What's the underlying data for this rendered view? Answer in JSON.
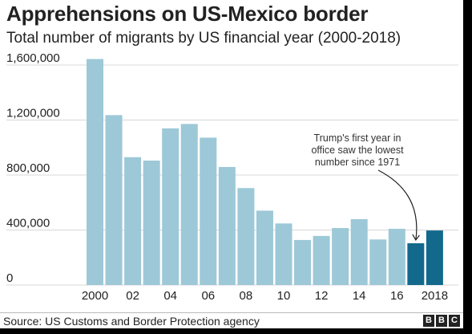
{
  "header": {
    "title": "Apprehensions on US-Mexico border",
    "subtitle": "Total number of migrants by US financial year (2000-2018)"
  },
  "footer": {
    "source": "Source: US Customs and Border Protection agency",
    "logo_letters": [
      "B",
      "B",
      "C"
    ]
  },
  "colors": {
    "bar_default": "#9dc8d7",
    "bar_highlight": "#13698c",
    "gridline": "#d8d8d8",
    "axis_text": "#222222",
    "annotation_text": "#333333"
  },
  "chart_data": {
    "type": "bar",
    "title": "Apprehensions on US-Mexico border",
    "subtitle": "Total number of migrants by US financial year (2000-2018)",
    "categories": [
      "2000",
      "2001",
      "2002",
      "2003",
      "2004",
      "2005",
      "2006",
      "2007",
      "2008",
      "2009",
      "2010",
      "2011",
      "2012",
      "2013",
      "2014",
      "2015",
      "2016",
      "2017",
      "2018"
    ],
    "values": [
      1643679,
      1235718,
      929809,
      905065,
      1139282,
      1171396,
      1071972,
      858638,
      705005,
      540865,
      447731,
      327577,
      356873,
      414397,
      479371,
      331333,
      408870,
      303916,
      396579
    ],
    "highlight": [
      "2017",
      "2018"
    ],
    "x_tick_labels": [
      "2000",
      "",
      "02",
      "",
      "04",
      "",
      "06",
      "",
      "08",
      "",
      "10",
      "",
      "12",
      "",
      "14",
      "",
      "16",
      "",
      "2018"
    ],
    "y_ticks": [
      0,
      400000,
      800000,
      1200000,
      1600000
    ],
    "y_tick_labels": [
      "0",
      "400,000",
      "800,000",
      "1,200,000",
      "1,600,000"
    ],
    "ylim": [
      0,
      1600000
    ],
    "xlabel": "",
    "ylabel": "",
    "grid": true,
    "annotation": {
      "target": "2017",
      "lines": [
        "Trump's first year in",
        "office saw the lowest",
        "number since 1971"
      ]
    }
  }
}
